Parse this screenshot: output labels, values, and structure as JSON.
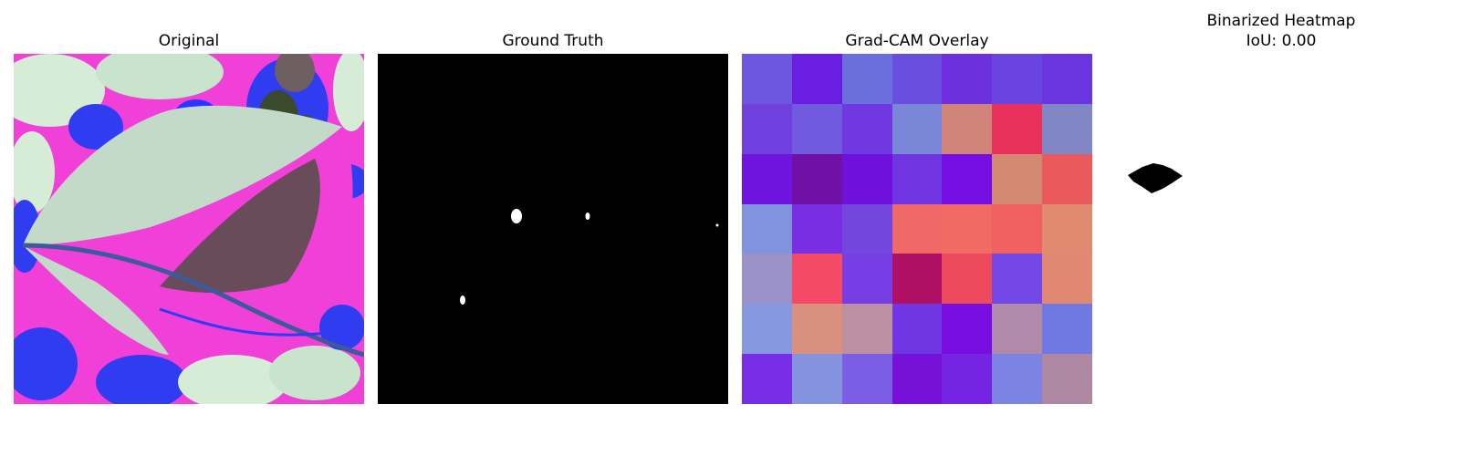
{
  "panels": [
    {
      "title": "Original"
    },
    {
      "title": "Ground Truth"
    },
    {
      "title": "Grad-CAM Overlay"
    },
    {
      "title": "Binarized Heatmap",
      "subtitle": "IoU: 0.00"
    }
  ],
  "gradcam": {
    "colors": [
      [
        "#6e57e0",
        "#6a1fe0",
        "#6b6fdc",
        "#6a4ee0",
        "#6c30df",
        "#6a44de",
        "#6b35df"
      ],
      [
        "#7040de",
        "#6f5ae0",
        "#7038e0",
        "#7a86d8",
        "#d08479",
        "#e8305c",
        "#8187c4"
      ],
      [
        "#6e14de",
        "#7010a5",
        "#7010dc",
        "#7034e0",
        "#750ee2",
        "#d48a72",
        "#ea5a5c"
      ],
      [
        "#8292dc",
        "#7a2ee3",
        "#7346e0",
        "#f06868",
        "#f26a64",
        "#f06262",
        "#e08a72"
      ],
      [
        "#9a92c8",
        "#f44a66",
        "#783ee6",
        "#b01064",
        "#ee4a5e",
        "#7448e6",
        "#e08872"
      ],
      [
        "#8898e0",
        "#da907e",
        "#bc90a0",
        "#7036e4",
        "#780ee0",
        "#b08aa8",
        "#7078e2"
      ],
      [
        "#782ee6",
        "#8592de",
        "#7c5ee6",
        "#7612d8",
        "#7424e2",
        "#7b84e0",
        "#ae88a2"
      ]
    ]
  }
}
